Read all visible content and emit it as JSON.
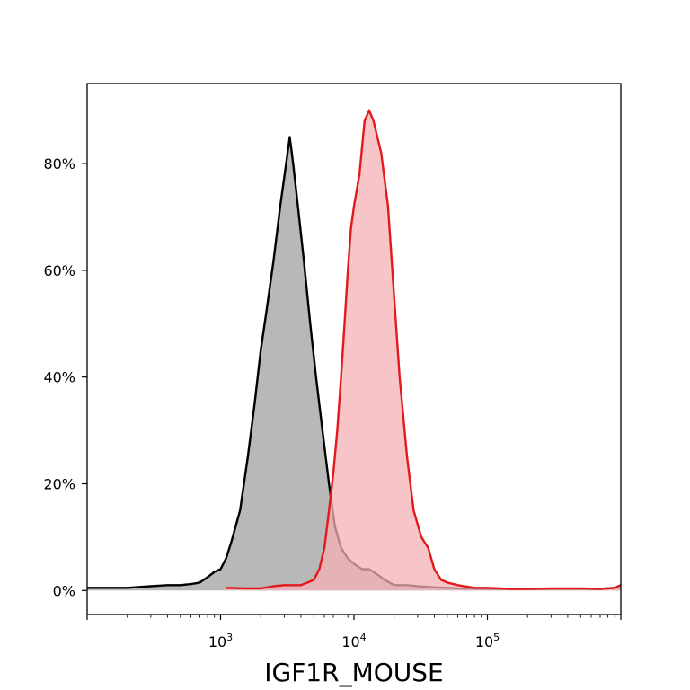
{
  "chart_data": {
    "type": "area",
    "xlabel": "IGF1R_MOUSE",
    "xscale": "log",
    "xlim": [
      100,
      1000000
    ],
    "ylim": [
      -0.045,
      0.95
    ],
    "x_ticks": [
      {
        "value": 1000,
        "base": "10",
        "exp": "3"
      },
      {
        "value": 10000,
        "base": "10",
        "exp": "4"
      },
      {
        "value": 100000,
        "base": "10",
        "exp": "5"
      }
    ],
    "y_ticks": [
      {
        "value": 0.0,
        "label": "0%"
      },
      {
        "value": 0.2,
        "label": "20%"
      },
      {
        "value": 0.4,
        "label": "40%"
      },
      {
        "value": 0.6,
        "label": "60%"
      },
      {
        "value": 0.8,
        "label": "80%"
      }
    ],
    "grid": false,
    "legend": "none",
    "series": [
      {
        "line_color": "#000000",
        "fill_color": "#a0a0a0",
        "points": [
          [
            100,
            0.005
          ],
          [
            200,
            0.005
          ],
          [
            300,
            0.008
          ],
          [
            400,
            0.01
          ],
          [
            500,
            0.01
          ],
          [
            600,
            0.012
          ],
          [
            700,
            0.015
          ],
          [
            800,
            0.025
          ],
          [
            900,
            0.035
          ],
          [
            1000,
            0.04
          ],
          [
            1100,
            0.06
          ],
          [
            1200,
            0.09
          ],
          [
            1400,
            0.15
          ],
          [
            1600,
            0.25
          ],
          [
            1800,
            0.35
          ],
          [
            2000,
            0.45
          ],
          [
            2200,
            0.52
          ],
          [
            2500,
            0.62
          ],
          [
            2800,
            0.72
          ],
          [
            3100,
            0.8
          ],
          [
            3300,
            0.85
          ],
          [
            3500,
            0.8
          ],
          [
            3800,
            0.72
          ],
          [
            4200,
            0.62
          ],
          [
            4700,
            0.5
          ],
          [
            5200,
            0.4
          ],
          [
            5800,
            0.3
          ],
          [
            6500,
            0.2
          ],
          [
            7200,
            0.12
          ],
          [
            8000,
            0.08
          ],
          [
            9000,
            0.06
          ],
          [
            10000,
            0.05
          ],
          [
            11500,
            0.04
          ],
          [
            13000,
            0.04
          ],
          [
            15000,
            0.03
          ],
          [
            17000,
            0.02
          ],
          [
            20000,
            0.01
          ],
          [
            25000,
            0.01
          ],
          [
            30000,
            0.008
          ],
          [
            40000,
            0.006
          ],
          [
            60000,
            0.004
          ],
          [
            100000,
            0.003
          ],
          [
            150000,
            0.003
          ],
          [
            200000,
            0.003
          ],
          [
            300000,
            0.003
          ],
          [
            500000,
            0.003
          ],
          [
            700000,
            0.003
          ],
          [
            900000,
            0.005
          ],
          [
            1000000,
            0.01
          ]
        ]
      },
      {
        "line_color": "#e31a1c",
        "fill_color": "#f4b0b4",
        "points": [
          [
            1100,
            0.005
          ],
          [
            1500,
            0.004
          ],
          [
            2000,
            0.004
          ],
          [
            2500,
            0.008
          ],
          [
            3000,
            0.01
          ],
          [
            3500,
            0.01
          ],
          [
            4000,
            0.01
          ],
          [
            4500,
            0.015
          ],
          [
            5000,
            0.02
          ],
          [
            5500,
            0.04
          ],
          [
            6000,
            0.08
          ],
          [
            6500,
            0.15
          ],
          [
            7000,
            0.22
          ],
          [
            7500,
            0.3
          ],
          [
            8000,
            0.4
          ],
          [
            8500,
            0.5
          ],
          [
            9000,
            0.6
          ],
          [
            9500,
            0.68
          ],
          [
            10000,
            0.72
          ],
          [
            11000,
            0.78
          ],
          [
            12000,
            0.88
          ],
          [
            13000,
            0.9
          ],
          [
            14000,
            0.88
          ],
          [
            16000,
            0.82
          ],
          [
            18000,
            0.72
          ],
          [
            20000,
            0.55
          ],
          [
            22000,
            0.4
          ],
          [
            25000,
            0.25
          ],
          [
            28000,
            0.15
          ],
          [
            32000,
            0.1
          ],
          [
            36000,
            0.08
          ],
          [
            40000,
            0.04
          ],
          [
            45000,
            0.02
          ],
          [
            50000,
            0.015
          ],
          [
            60000,
            0.01
          ],
          [
            80000,
            0.005
          ],
          [
            100000,
            0.005
          ],
          [
            150000,
            0.003
          ],
          [
            200000,
            0.003
          ],
          [
            300000,
            0.004
          ],
          [
            500000,
            0.004
          ],
          [
            700000,
            0.003
          ],
          [
            900000,
            0.005
          ],
          [
            1000000,
            0.01
          ]
        ]
      }
    ]
  }
}
